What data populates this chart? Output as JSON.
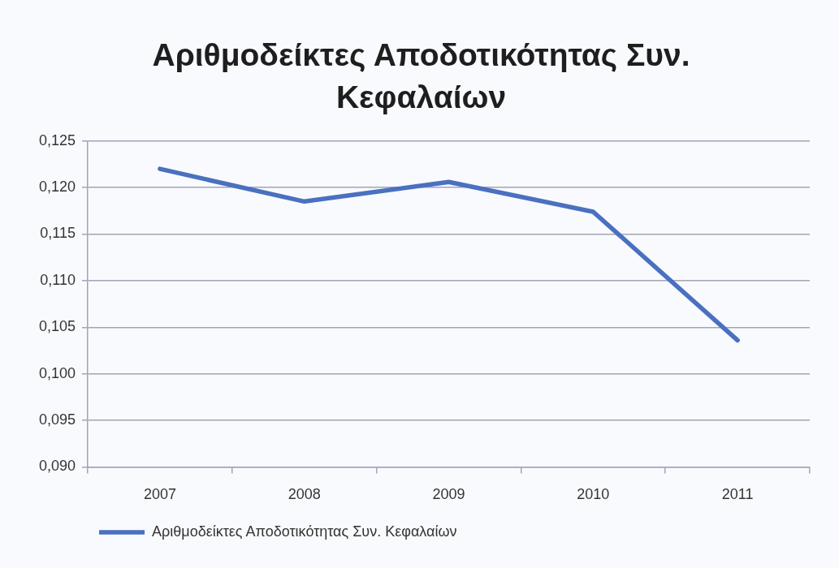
{
  "chart_data": {
    "type": "line",
    "title": "Αριθμοδείκτες Αποδοτικότητας Συν. Κεφαλαίων",
    "categories": [
      "2007",
      "2008",
      "2009",
      "2010",
      "2011"
    ],
    "series": [
      {
        "name": "Αριθμοδείκτες Αποδοτικότητας Συν. Κεφαλαίων",
        "color": "#4a70c0",
        "values": [
          0.122,
          0.1185,
          0.1206,
          0.1174,
          0.1036
        ]
      }
    ],
    "ylim": [
      0.09,
      0.125
    ],
    "yticks": [
      {
        "value": 0.09,
        "label": "0,090"
      },
      {
        "value": 0.095,
        "label": "0,095"
      },
      {
        "value": 0.1,
        "label": "0,100"
      },
      {
        "value": 0.105,
        "label": "0,105"
      },
      {
        "value": 0.11,
        "label": "0,110"
      },
      {
        "value": 0.115,
        "label": "0,115"
      },
      {
        "value": 0.12,
        "label": "0,120"
      },
      {
        "value": 0.125,
        "label": "0,125"
      }
    ],
    "grid": "y",
    "legend": "bottom left",
    "marker": "none",
    "line_style": "solid"
  }
}
